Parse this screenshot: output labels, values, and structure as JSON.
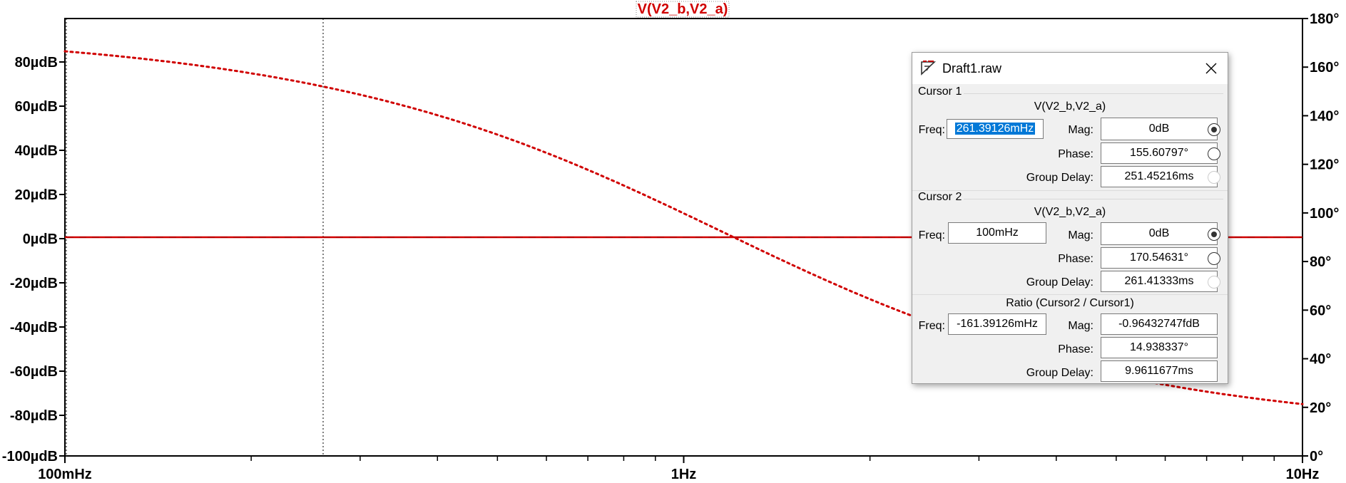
{
  "plot": {
    "trace_title": "V(V2_b,V2_a)",
    "left_axis_labels": [
      "80µdB",
      "60µdB",
      "40µdB",
      "20µdB",
      "0µdB",
      "-20µdB",
      "-40µdB",
      "-60µdB",
      "-80µdB",
      "-100µdB"
    ],
    "right_axis_labels": [
      "180°",
      "160°",
      "140°",
      "120°",
      "100°",
      "80°",
      "60°",
      "40°",
      "20°",
      "0°"
    ],
    "x_axis_labels": [
      "100mHz",
      "1Hz",
      "10Hz"
    ],
    "trace_color": "#d00000"
  },
  "dialog": {
    "title": "Draft1.raw",
    "app_icon": "ltspice-icon",
    "close_icon": "close-icon",
    "cursor1": {
      "label": "Cursor 1",
      "trace": "V(V2_b,V2_a)",
      "freq_label": "Freq:",
      "freq": "261.39126mHz",
      "mag_label": "Mag:",
      "mag": "0dB",
      "phase_label": "Phase:",
      "phase": "155.60797°",
      "gd_label": "Group Delay:",
      "gd": "251.45216ms"
    },
    "cursor2": {
      "label": "Cursor 2",
      "trace": "V(V2_b,V2_a)",
      "freq_label": "Freq:",
      "freq": "100mHz",
      "mag_label": "Mag:",
      "mag": "0dB",
      "phase_label": "Phase:",
      "phase": "170.54631°",
      "gd_label": "Group Delay:",
      "gd": "261.41333ms"
    },
    "ratio": {
      "label": "Ratio (Cursor2 / Cursor1)",
      "freq_label": "Freq:",
      "freq": "-161.39126mHz",
      "mag_label": "Mag:",
      "mag": "-0.96432747fdB",
      "phase_label": "Phase:",
      "phase": "14.938337°",
      "gd_label": "Group Delay:",
      "gd": "9.9611677ms"
    }
  }
}
